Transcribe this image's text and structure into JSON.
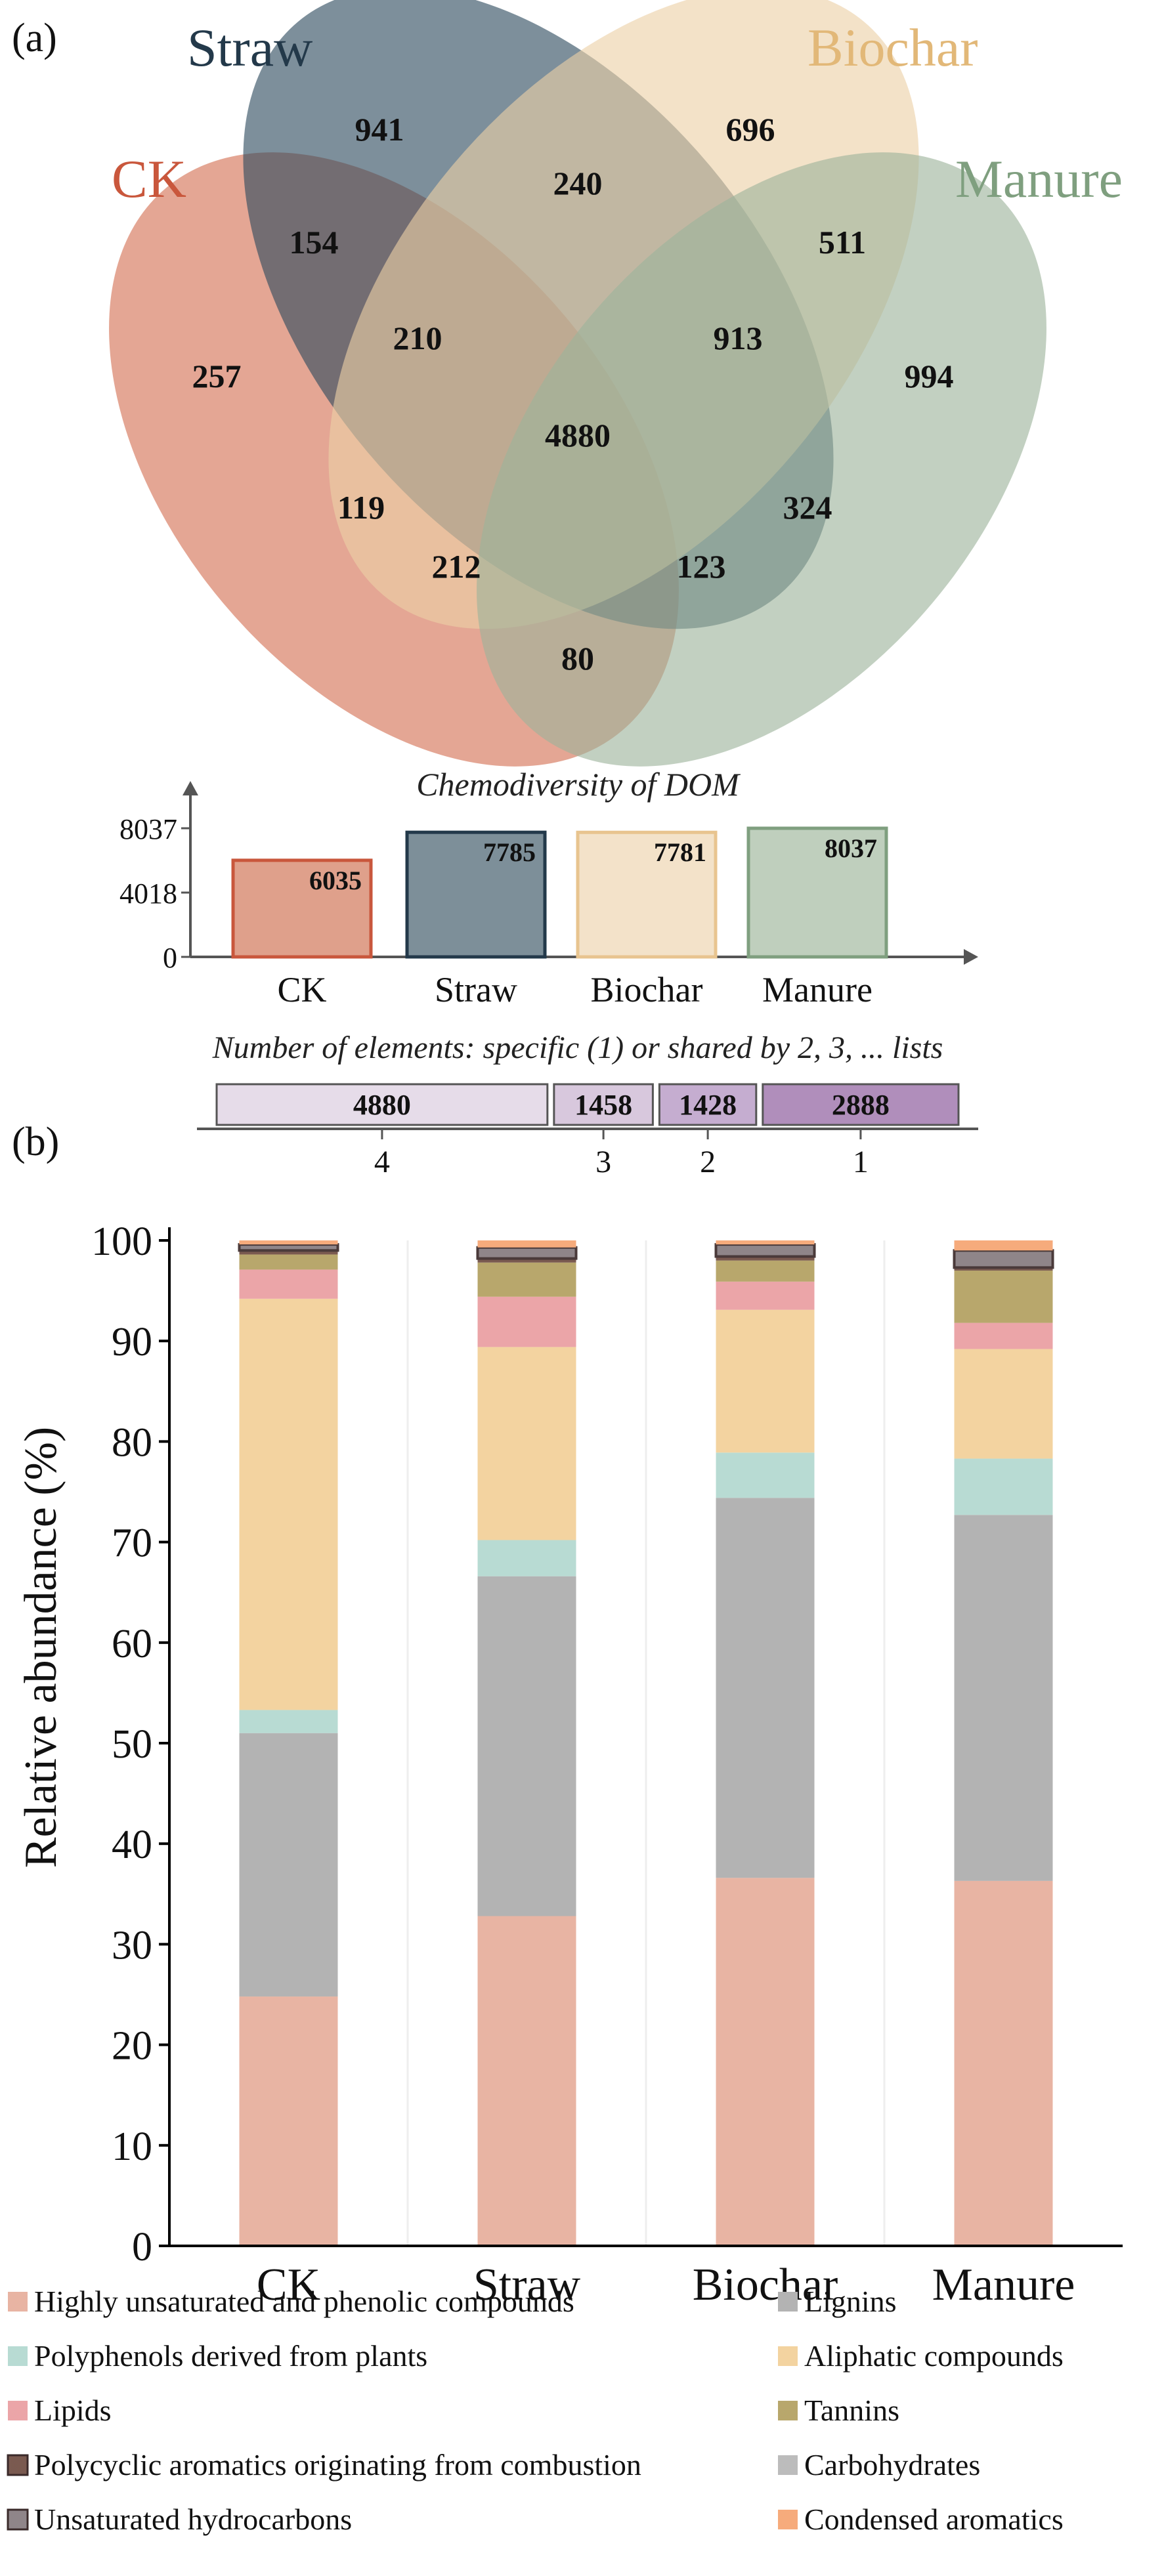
{
  "panel_a_label": "(a)",
  "panel_b_label": "(b)",
  "venn": {
    "sets": [
      {
        "name": "CK",
        "color": "#c9573c",
        "fill": "#d9836b"
      },
      {
        "name": "Straw",
        "color": "#23394a",
        "fill": "#2d4a5e"
      },
      {
        "name": "Biochar",
        "color": "#e8c48f",
        "fill": "#ecd1a6"
      },
      {
        "name": "Manure",
        "color": "#7f9f7f",
        "fill": "#9db39b"
      }
    ],
    "regions": [
      {
        "sets": [
          "Straw"
        ],
        "value": "941"
      },
      {
        "sets": [
          "Biochar"
        ],
        "value": "696"
      },
      {
        "sets": [
          "Straw",
          "Biochar"
        ],
        "value": "240"
      },
      {
        "sets": [
          "CK",
          "Straw"
        ],
        "value": "154"
      },
      {
        "sets": [
          "Biochar",
          "Manure"
        ],
        "value": "511"
      },
      {
        "sets": [
          "CK"
        ],
        "value": "257"
      },
      {
        "sets": [
          "CK",
          "Straw",
          "Biochar"
        ],
        "value": "210"
      },
      {
        "sets": [
          "Straw",
          "Biochar",
          "Manure"
        ],
        "value": "913"
      },
      {
        "sets": [
          "Manure"
        ],
        "value": "994"
      },
      {
        "sets": [
          "CK",
          "Straw",
          "Biochar",
          "Manure"
        ],
        "value": "4880"
      },
      {
        "sets": [
          "CK",
          "Biochar"
        ],
        "value": "119"
      },
      {
        "sets": [
          "Straw",
          "Manure"
        ],
        "value": "324"
      },
      {
        "sets": [
          "CK",
          "Biochar",
          "Manure"
        ],
        "value": "212"
      },
      {
        "sets": [
          "CK",
          "Straw",
          "Manure"
        ],
        "value": "123"
      },
      {
        "sets": [
          "CK",
          "Manure"
        ],
        "value": "80"
      }
    ]
  },
  "chemodiversity": {
    "title": "Chemodiversity of DOM",
    "y_ticks": [
      "8037",
      "4018",
      "0"
    ],
    "ymax": 8037,
    "bars": [
      {
        "label": "CK",
        "value": 6035,
        "value_text": "6035",
        "edge": "#c9573c",
        "fill": "#dfa08b"
      },
      {
        "label": "Straw",
        "value": 7785,
        "value_text": "7785",
        "edge": "#23394a",
        "fill": "#7d8f99"
      },
      {
        "label": "Biochar",
        "value": 7781,
        "value_text": "7781",
        "edge": "#e8c48f",
        "fill": "#f3e2c9"
      },
      {
        "label": "Manure",
        "value": 8037,
        "value_text": "8037",
        "edge": "#7f9f7f",
        "fill": "#bfcfbd"
      }
    ]
  },
  "shared_elements": {
    "title": "Number of elements: specific (1) or shared by 2, 3, ... lists",
    "segments": [
      {
        "value": 4880,
        "value_text": "4880",
        "label": "4",
        "fill": "#e6dce9"
      },
      {
        "value": 1458,
        "value_text": "1458",
        "label": "3",
        "fill": "#d8c8dd"
      },
      {
        "value": 1428,
        "value_text": "1428",
        "label": "2",
        "fill": "#c5add0"
      },
      {
        "value": 2888,
        "value_text": "2888",
        "label": "1",
        "fill": "#b08ebb"
      }
    ]
  },
  "chart_data": {
    "type": "bar",
    "stacked": true,
    "ylabel": "Relative abundance (%)",
    "ylim": [
      0,
      100
    ],
    "y_ticks": [
      "0",
      "10",
      "20",
      "30",
      "40",
      "50",
      "60",
      "70",
      "80",
      "90",
      "100"
    ],
    "categories": [
      "CK",
      "Straw",
      "Biochar",
      "Manure"
    ],
    "series": [
      {
        "name": "Highly unsaturated and phenolic compounds",
        "color": "#e8b4a3",
        "values": [
          24.8,
          32.8,
          36.6,
          36.3
        ]
      },
      {
        "name": "Lignins",
        "color": "#b3b3b3",
        "values": [
          26.2,
          33.8,
          37.8,
          36.4
        ]
      },
      {
        "name": "Polyphenols derived from plants",
        "color": "#b8dbd3",
        "values": [
          2.3,
          3.6,
          4.5,
          5.6
        ]
      },
      {
        "name": "Aliphatic compounds",
        "color": "#f3d3a0",
        "values": [
          40.9,
          19.2,
          14.2,
          10.9
        ]
      },
      {
        "name": "Lipids",
        "color": "#eba5a8",
        "values": [
          2.9,
          5.0,
          2.8,
          2.6
        ]
      },
      {
        "name": "Tannins",
        "color": "#b8a76c",
        "values": [
          1.5,
          3.4,
          2.1,
          5.2
        ]
      },
      {
        "name": "Polycyclic aromatics originating from combustion",
        "color": "#7a5a50",
        "values": [
          0.4,
          0.4,
          0.4,
          0.3
        ]
      },
      {
        "name": "Carbohydrates",
        "color": "#bcbcbc",
        "values": [
          0.0,
          0.0,
          0.0,
          0.0
        ]
      },
      {
        "name": "Unsaturated hydrocarbons",
        "color": "#8f8589",
        "values": [
          0.6,
          1.1,
          1.2,
          1.7
        ]
      },
      {
        "name": "Condensed aromatics",
        "color": "#f6ab7c",
        "values": [
          0.4,
          0.7,
          0.4,
          1.0
        ]
      }
    ],
    "grid": false,
    "legend_position": "bottom"
  }
}
